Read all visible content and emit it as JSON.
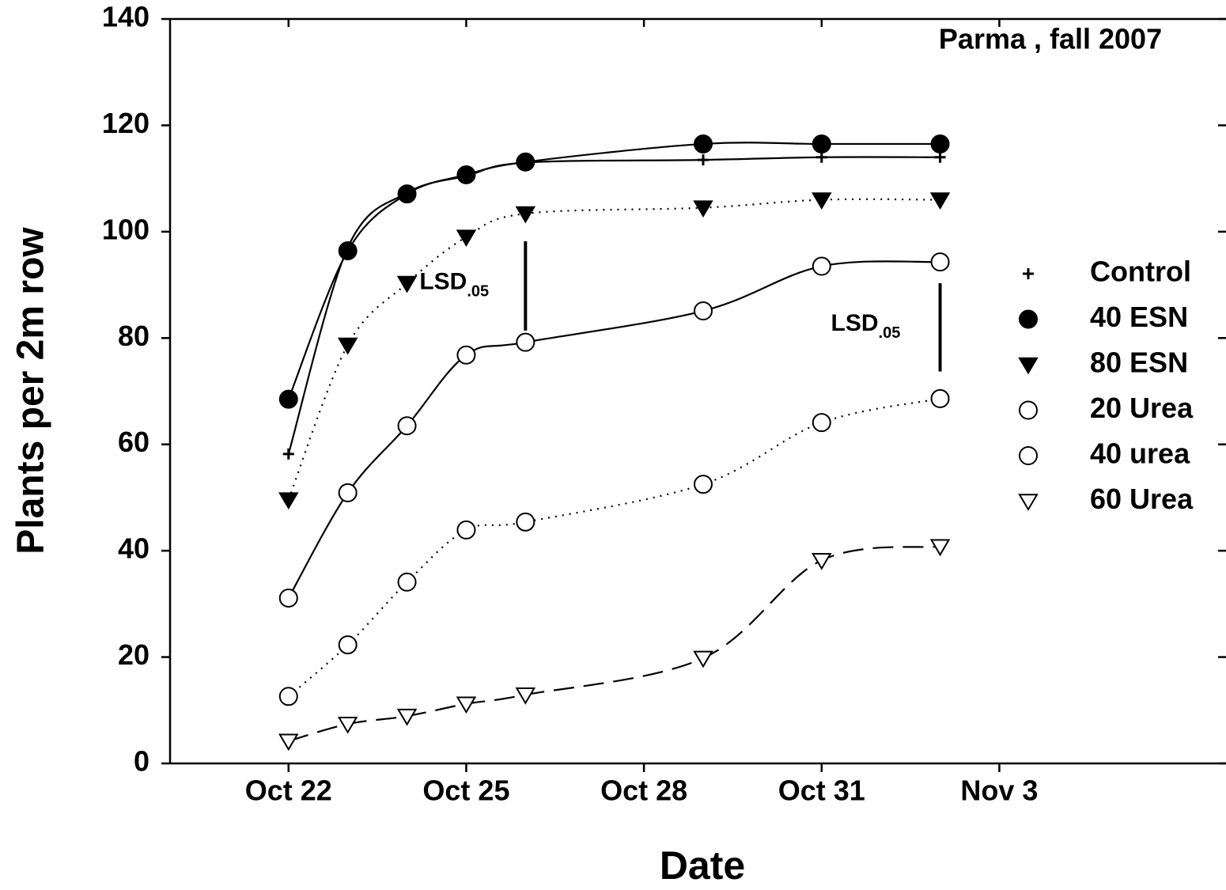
{
  "chart_data": {
    "type": "line",
    "title": "Parma , fall 2007",
    "xlabel": "Date",
    "ylabel": "Plants per 2m row",
    "x": [
      "Oct 22",
      "Oct 23",
      "Oct 24",
      "Oct 25",
      "Oct 26",
      "Oct 29",
      "Oct 31",
      "Nov 2"
    ],
    "xlim": [
      "Oct 20",
      "Nov 7"
    ],
    "xticks": [
      "Oct 22",
      "Oct 25",
      "Oct 28",
      "Oct 31",
      "Nov 3"
    ],
    "ylim": [
      0,
      140
    ],
    "yticks": [
      0,
      20,
      40,
      60,
      80,
      100,
      120,
      140
    ],
    "series": [
      {
        "name": "Control",
        "color": "#000000",
        "marker": "plus",
        "line": "solid",
        "values": [
          58.2,
          97,
          107.3,
          110.5,
          113,
          113.5,
          114,
          114
        ]
      },
      {
        "name": "40 ESN",
        "color": "#000000",
        "marker": "filled-circle",
        "line": "solid",
        "values": [
          68.5,
          96.4,
          107.1,
          110.7,
          113.1,
          116.5,
          116.5,
          116.5
        ]
      },
      {
        "name": "80 ESN",
        "color": "#000000",
        "marker": "filled-triangle-down",
        "line": "dotted",
        "values": [
          49.6,
          78.7,
          90.3,
          99,
          103.4,
          104.5,
          106,
          106
        ]
      },
      {
        "name": "20 Urea",
        "color": "#000000",
        "marker": "open-circle",
        "line": "solid",
        "values": [
          31.1,
          50.9,
          63.5,
          76.8,
          79.2,
          85.1,
          93.5,
          94.3
        ]
      },
      {
        "name": "40 urea",
        "color": "#000000",
        "marker": "open-circle",
        "line": "dotted",
        "values": [
          12.6,
          22.3,
          34.1,
          43.9,
          45.4,
          52.5,
          64.1,
          68.6
        ]
      },
      {
        "name": "60 Urea",
        "color": "#000000",
        "marker": "open-triangle-down",
        "line": "dashed",
        "values": [
          4.2,
          7.4,
          8.9,
          11.2,
          12.9,
          19.8,
          38.2,
          40.8
        ]
      }
    ],
    "annotations": [
      {
        "text": "LSD",
        "sub": ".05",
        "x": "Oct 26",
        "y": [
          81.4,
          98.2
        ]
      },
      {
        "text": "LSD",
        "sub": ".05",
        "x": "Nov 2",
        "y": [
          73.7,
          90.3
        ]
      }
    ]
  }
}
